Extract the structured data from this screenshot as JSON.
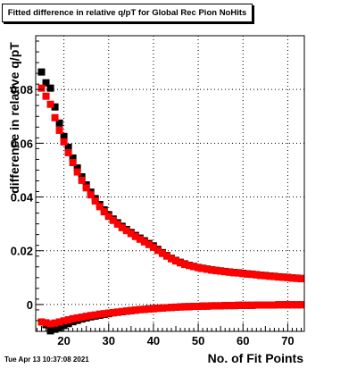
{
  "chart_data": {
    "type": "scatter",
    "title": "Fitted difference in relative q/pT for Global Rec Pion NoHits",
    "xlabel": "No. of Fit Points",
    "ylabel": "difference in relative q/pT",
    "xlim": [
      13.7,
      73.7
    ],
    "ylim": [
      -0.01,
      0.1
    ],
    "x_ticks": [
      20,
      30,
      40,
      50,
      60,
      70
    ],
    "y_ticks": [
      0,
      0.02,
      0.04,
      0.06,
      0.08
    ],
    "y_tick_labels": [
      "0",
      "0.02",
      "0.04",
      "0.06",
      "0.08"
    ],
    "grid": true,
    "series": [
      {
        "color": "#000000",
        "marker": "square",
        "x": [
          15,
          16,
          17,
          18,
          19,
          20,
          21,
          22,
          23,
          24,
          25,
          26,
          27,
          28,
          29,
          30,
          31,
          32,
          33,
          34,
          35,
          36,
          37,
          38,
          39,
          40,
          41,
          42,
          43,
          44,
          45,
          46,
          47,
          48,
          49,
          50,
          51,
          52,
          53,
          54,
          55,
          56,
          57,
          58,
          59,
          60,
          61,
          62,
          63,
          64,
          65,
          66,
          67,
          68,
          69,
          70,
          71,
          72,
          73
        ],
        "values": [
          0.0865,
          0.0825,
          0.0805,
          0.0735,
          0.0675,
          0.0625,
          0.0585,
          0.0545,
          0.0508,
          0.0475,
          0.0445,
          0.0418,
          0.0394,
          0.0372,
          0.0352,
          0.0334,
          0.0318,
          0.0304,
          0.0291,
          0.0279,
          0.0268,
          0.0257,
          0.0247,
          0.0237,
          0.0227,
          0.0218,
          0.0205,
          0.0193,
          0.0182,
          0.0172,
          0.0164,
          0.0157,
          0.0151,
          0.0146,
          0.0142,
          0.0138,
          0.0135,
          0.0132,
          0.0129,
          0.0127,
          0.0125,
          0.0123,
          0.0121,
          0.0119,
          0.0118,
          0.0116,
          0.0114,
          0.0113,
          0.0111,
          0.0109,
          0.0108,
          0.0106,
          0.0105,
          0.0103,
          0.0102,
          0.0101,
          0.0099,
          0.0098,
          0.0097
        ]
      },
      {
        "color": "#ff0000",
        "marker": "square",
        "x": [
          15,
          16,
          17,
          18,
          19,
          20,
          21,
          22,
          23,
          24,
          25,
          26,
          27,
          28,
          29,
          30,
          31,
          32,
          33,
          34,
          35,
          36,
          37,
          38,
          39,
          40,
          41,
          42,
          43,
          44,
          45,
          46,
          47,
          48,
          49,
          50,
          51,
          52,
          53,
          54,
          55,
          56,
          57,
          58,
          59,
          60,
          61,
          62,
          63,
          64,
          65,
          66,
          67,
          68,
          69,
          70,
          71,
          72,
          73
        ],
        "values": [
          0.0805,
          0.0775,
          0.0745,
          0.0695,
          0.0648,
          0.0605,
          0.0565,
          0.0528,
          0.0493,
          0.0462,
          0.0434,
          0.0408,
          0.0385,
          0.0364,
          0.0345,
          0.0328,
          0.0313,
          0.0299,
          0.0286,
          0.0275,
          0.0264,
          0.0253,
          0.0243,
          0.0233,
          0.0223,
          0.0213,
          0.0201,
          0.019,
          0.018,
          0.017,
          0.0162,
          0.0155,
          0.0149,
          0.0145,
          0.0141,
          0.0137,
          0.0134,
          0.0131,
          0.0128,
          0.0126,
          0.0124,
          0.0122,
          0.012,
          0.0118,
          0.0117,
          0.0115,
          0.0113,
          0.0112,
          0.011,
          0.0108,
          0.0107,
          0.0105,
          0.0104,
          0.0102,
          0.0101,
          0.01,
          0.0098,
          0.0097,
          0.0096
        ]
      },
      {
        "color": "#000000",
        "marker": "square",
        "x": [
          15,
          16,
          17,
          18,
          19,
          20,
          21,
          22,
          23,
          24,
          25,
          26,
          27,
          28,
          29,
          30,
          31,
          32,
          33,
          34,
          35,
          36,
          37,
          38,
          39,
          40,
          41,
          42,
          43,
          44,
          45,
          46,
          47,
          48,
          49,
          50,
          51,
          52,
          53,
          54,
          55,
          56,
          57,
          58,
          59,
          60,
          61,
          62,
          63,
          64,
          65,
          66,
          67,
          68,
          69,
          70,
          71,
          72,
          73
        ],
        "values": [
          -0.0065,
          -0.0075,
          -0.0098,
          -0.0092,
          -0.0085,
          -0.0078,
          -0.0071,
          -0.0064,
          -0.0059,
          -0.0054,
          -0.005,
          -0.0046,
          -0.0043,
          -0.004,
          -0.0037,
          -0.0034,
          -0.0031,
          -0.0029,
          -0.0027,
          -0.0025,
          -0.0023,
          -0.0021,
          -0.0019,
          -0.0018,
          -0.0016,
          -0.0015,
          -0.0014,
          -0.0013,
          -0.0012,
          -0.0011,
          -0.001,
          -0.0009,
          -0.0008,
          -0.0008,
          -0.0007,
          -0.0007,
          -0.0006,
          -0.0006,
          -0.0005,
          -0.0005,
          -0.0005,
          -0.0004,
          -0.0004,
          -0.0004,
          -0.0003,
          -0.0003,
          -0.0003,
          -0.0003,
          -0.0002,
          -0.0002,
          -0.0002,
          -0.0002,
          -0.0002,
          -0.0001,
          -0.0001,
          -0.0001,
          -0.0001,
          -0.0001,
          -0.0001
        ]
      },
      {
        "color": "#ff0000",
        "marker": "square",
        "x": [
          15,
          16,
          17,
          18,
          19,
          20,
          21,
          22,
          23,
          24,
          25,
          26,
          27,
          28,
          29,
          30,
          31,
          32,
          33,
          34,
          35,
          36,
          37,
          38,
          39,
          40,
          41,
          42,
          43,
          44,
          45,
          46,
          47,
          48,
          49,
          50,
          51,
          52,
          53,
          54,
          55,
          56,
          57,
          58,
          59,
          60,
          61,
          62,
          63,
          64,
          65,
          66,
          67,
          68,
          69,
          70,
          71,
          72,
          73
        ],
        "values": [
          -0.0065,
          -0.0068,
          -0.0072,
          -0.0069,
          -0.0065,
          -0.0061,
          -0.0057,
          -0.0053,
          -0.005,
          -0.0047,
          -0.0044,
          -0.0041,
          -0.0039,
          -0.0036,
          -0.0034,
          -0.0032,
          -0.003,
          -0.0028,
          -0.0026,
          -0.0024,
          -0.0022,
          -0.0021,
          -0.0019,
          -0.0018,
          -0.0017,
          -0.0016,
          -0.0014,
          -0.0013,
          -0.0012,
          -0.0011,
          -0.001,
          -0.0009,
          -0.0009,
          -0.0008,
          -0.0007,
          -0.0007,
          -0.0006,
          -0.0006,
          -0.0005,
          -0.0005,
          -0.0005,
          -0.0004,
          -0.0004,
          -0.0004,
          -0.0003,
          -0.0003,
          -0.0003,
          -0.0003,
          -0.0002,
          -0.0002,
          -0.0002,
          -0.0002,
          -0.0002,
          -0.0001,
          -0.0001,
          -0.0001,
          -0.0001,
          -0.0001,
          -0.0001
        ]
      }
    ]
  },
  "footer": {
    "timestamp": "Tue Apr 13 10:37:08 2021"
  }
}
